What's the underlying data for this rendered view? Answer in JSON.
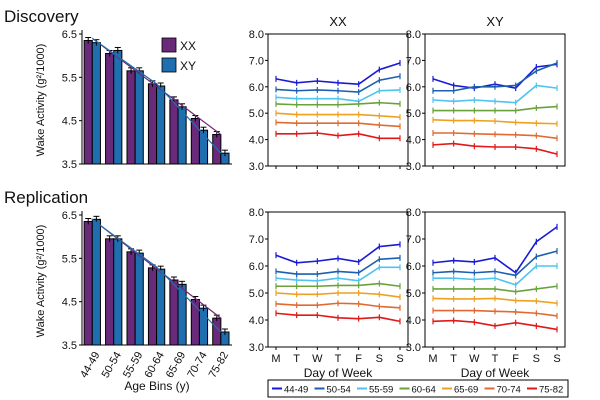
{
  "sections": {
    "top": "Discovery",
    "bottom": "Replication"
  },
  "bar_legend": [
    {
      "label": "XX",
      "color": "#6a2a7a"
    },
    {
      "label": "XY",
      "color": "#1f6fb0"
    }
  ],
  "panel_titles": {
    "xx": "XX",
    "xy": "XY"
  },
  "day_axis_label": "Day of Week",
  "age_axis_label": "Age Bins (y)",
  "wake_axis_label": "Wake Activity (g²/1000)",
  "series_legend": [
    {
      "label": "44-49",
      "color": "#1a1ad6"
    },
    {
      "label": "50-54",
      "color": "#1c5fb0"
    },
    {
      "label": "55-59",
      "color": "#4fc3f0"
    },
    {
      "label": "60-64",
      "color": "#6aa23a"
    },
    {
      "label": "65-69",
      "color": "#f0a020"
    },
    {
      "label": "70-74",
      "color": "#e06a30"
    },
    {
      "label": "75-82",
      "color": "#e01818"
    }
  ],
  "chart_data": [
    {
      "type": "bar",
      "section": "Discovery",
      "categories": [
        "44-49",
        "50-54",
        "55-59",
        "60-64",
        "65-69",
        "70-74",
        "75-82"
      ],
      "series": [
        {
          "name": "XX",
          "values": [
            6.35,
            6.05,
            5.65,
            5.35,
            4.98,
            4.55,
            4.18
          ]
        },
        {
          "name": "XY",
          "values": [
            6.3,
            6.12,
            5.65,
            5.3,
            4.82,
            4.28,
            3.75
          ]
        }
      ],
      "trend": [
        6.4,
        5.35,
        3.75
      ],
      "ylim": [
        3.5,
        6.5
      ],
      "yticks": [
        3.5,
        4.5,
        5.5,
        6.5
      ],
      "ylabel": "Wake Activity (g²/1000)"
    },
    {
      "type": "line",
      "section": "Discovery",
      "title": "XX",
      "x": [
        "M",
        "T",
        "W",
        "T",
        "F",
        "S",
        "S"
      ],
      "ylim": [
        3.0,
        8.0
      ],
      "yticks": [
        3.0,
        4.0,
        5.0,
        6.0,
        7.0,
        8.0
      ],
      "series": [
        {
          "name": "44-49",
          "values": [
            6.3,
            6.15,
            6.22,
            6.15,
            6.1,
            6.65,
            6.9
          ]
        },
        {
          "name": "50-54",
          "values": [
            5.9,
            5.85,
            5.88,
            5.85,
            5.8,
            6.25,
            6.4
          ]
        },
        {
          "name": "55-59",
          "values": [
            5.6,
            5.55,
            5.55,
            5.55,
            5.45,
            5.85,
            5.88
          ]
        },
        {
          "name": "60-64",
          "values": [
            5.35,
            5.32,
            5.32,
            5.32,
            5.35,
            5.4,
            5.35
          ]
        },
        {
          "name": "65-69",
          "values": [
            5.0,
            4.95,
            4.95,
            4.95,
            4.95,
            4.9,
            4.85
          ]
        },
        {
          "name": "70-74",
          "values": [
            4.65,
            4.62,
            4.62,
            4.62,
            4.62,
            4.55,
            4.5
          ]
        },
        {
          "name": "75-82",
          "values": [
            4.22,
            4.22,
            4.25,
            4.15,
            4.22,
            4.05,
            4.05
          ]
        }
      ]
    },
    {
      "type": "line",
      "section": "Discovery",
      "title": "XY",
      "x": [
        "M",
        "T",
        "W",
        "T",
        "F",
        "S",
        "S"
      ],
      "ylim": [
        3.0,
        8.0
      ],
      "yticks": [
        3.0,
        4.0,
        5.0,
        6.0,
        7.0,
        8.0
      ],
      "series": [
        {
          "name": "44-49",
          "values": [
            6.3,
            6.05,
            5.95,
            6.1,
            5.95,
            6.75,
            6.85
          ]
        },
        {
          "name": "50-54",
          "values": [
            5.85,
            5.85,
            6.0,
            6.0,
            6.05,
            6.6,
            6.9
          ]
        },
        {
          "name": "55-59",
          "values": [
            5.5,
            5.45,
            5.5,
            5.45,
            5.4,
            6.05,
            5.95
          ]
        },
        {
          "name": "60-64",
          "values": [
            5.1,
            5.1,
            5.1,
            5.1,
            5.1,
            5.2,
            5.25
          ]
        },
        {
          "name": "65-69",
          "values": [
            4.75,
            4.72,
            4.72,
            4.7,
            4.65,
            4.62,
            4.6
          ]
        },
        {
          "name": "70-74",
          "values": [
            4.25,
            4.25,
            4.22,
            4.2,
            4.18,
            4.15,
            4.05
          ]
        },
        {
          "name": "75-82",
          "values": [
            3.8,
            3.85,
            3.75,
            3.72,
            3.72,
            3.65,
            3.45
          ]
        }
      ]
    },
    {
      "type": "bar",
      "section": "Replication",
      "categories": [
        "44-49",
        "50-54",
        "55-59",
        "60-64",
        "65-69",
        "70-74",
        "75-82"
      ],
      "series": [
        {
          "name": "XX",
          "values": [
            6.35,
            5.95,
            5.65,
            5.28,
            5.0,
            4.55,
            4.12
          ]
        },
        {
          "name": "XY",
          "values": [
            6.4,
            5.95,
            5.62,
            5.25,
            4.9,
            4.35,
            3.8
          ]
        }
      ],
      "trend": [
        6.4,
        5.3,
        3.8
      ],
      "ylim": [
        3.5,
        6.5
      ],
      "yticks": [
        3.5,
        4.5,
        5.5,
        6.5
      ],
      "xlabel": "Age Bins (y)",
      "ylabel": "Wake Activity (g²/1000)"
    },
    {
      "type": "line",
      "section": "Replication",
      "title": "",
      "x": [
        "M",
        "T",
        "W",
        "T",
        "F",
        "S",
        "S"
      ],
      "xlabel": "Day of Week",
      "ylim": [
        3.0,
        8.0
      ],
      "yticks": [
        3.0,
        4.0,
        5.0,
        6.0,
        7.0,
        8.0
      ],
      "series": [
        {
          "name": "44-49",
          "values": [
            6.4,
            6.12,
            6.18,
            6.28,
            6.15,
            6.72,
            6.8
          ]
        },
        {
          "name": "50-54",
          "values": [
            5.8,
            5.7,
            5.7,
            5.8,
            5.75,
            6.25,
            6.3
          ]
        },
        {
          "name": "55-59",
          "values": [
            5.55,
            5.48,
            5.45,
            5.55,
            5.45,
            5.95,
            5.95
          ]
        },
        {
          "name": "60-64",
          "values": [
            5.25,
            5.25,
            5.25,
            5.28,
            5.28,
            5.35,
            5.25
          ]
        },
        {
          "name": "65-69",
          "values": [
            5.0,
            4.95,
            4.95,
            5.0,
            5.0,
            4.95,
            4.85
          ]
        },
        {
          "name": "70-74",
          "values": [
            4.6,
            4.55,
            4.55,
            4.62,
            4.6,
            4.5,
            4.45
          ]
        },
        {
          "name": "75-82",
          "values": [
            4.25,
            4.18,
            4.18,
            4.08,
            4.05,
            4.1,
            3.95
          ]
        }
      ]
    },
    {
      "type": "line",
      "section": "Replication",
      "title": "",
      "x": [
        "M",
        "T",
        "W",
        "T",
        "F",
        "S",
        "S"
      ],
      "xlabel": "Day of Week",
      "ylim": [
        3.0,
        8.0
      ],
      "yticks": [
        3.0,
        4.0,
        5.0,
        6.0,
        7.0,
        8.0
      ],
      "series": [
        {
          "name": "44-49",
          "values": [
            6.12,
            6.2,
            6.15,
            6.3,
            5.75,
            6.9,
            7.45
          ]
        },
        {
          "name": "50-54",
          "values": [
            5.75,
            5.8,
            5.75,
            5.8,
            5.65,
            6.35,
            6.55
          ]
        },
        {
          "name": "55-59",
          "values": [
            5.55,
            5.55,
            5.5,
            5.55,
            5.3,
            6.0,
            6.0
          ]
        },
        {
          "name": "60-64",
          "values": [
            5.15,
            5.15,
            5.15,
            5.15,
            5.05,
            5.15,
            5.25
          ]
        },
        {
          "name": "65-69",
          "values": [
            4.8,
            4.78,
            4.78,
            4.8,
            4.72,
            4.7,
            4.62
          ]
        },
        {
          "name": "70-74",
          "values": [
            4.35,
            4.35,
            4.35,
            4.32,
            4.3,
            4.25,
            4.15
          ]
        },
        {
          "name": "75-82",
          "values": [
            3.95,
            3.98,
            3.92,
            3.78,
            3.9,
            3.78,
            3.65
          ]
        }
      ]
    }
  ]
}
